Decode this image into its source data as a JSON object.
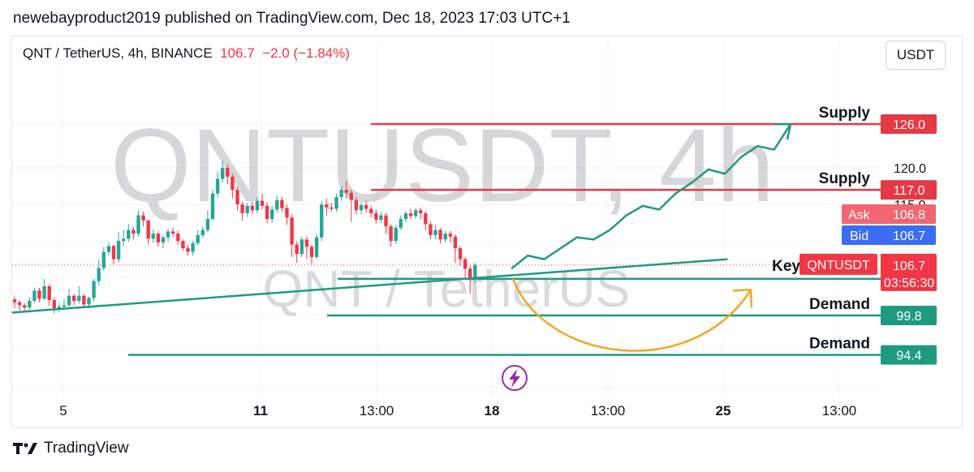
{
  "header": {
    "published_by": "newebayproduct2019 published on TradingView.com, Dec 18, 2023 17:03 UTC+1"
  },
  "symbol": {
    "name": "QNT / TetherUS, 4h, BINANCE",
    "price": "106.7",
    "change": "−2.0 (−1.84%)",
    "currency": "USDT"
  },
  "watermark": {
    "big": "QNTUSDT, 4h",
    "small": "QNT / TetherUS"
  },
  "footer": {
    "brand": "TradingView"
  },
  "colors": {
    "up": "#26a69a",
    "down": "#f23645",
    "supply_line": "#e53945",
    "demand_line": "#1f9a80",
    "arrow": "#1f9a80",
    "curve": "#f5a623",
    "ask": "#f26671",
    "bid": "#3a6cf4"
  },
  "chart_data": {
    "type": "candlestick",
    "x_ticks": [
      "5",
      "11",
      "13:00",
      "18",
      "13:00",
      "25",
      "13:00"
    ],
    "y_ticks": [
      120.0,
      115.0
    ],
    "ylim": [
      88.8,
      133.0
    ],
    "levels": [
      {
        "label": "Supply",
        "value": 126.0,
        "value_label": "126.0",
        "kind": "supply"
      },
      {
        "label": "Supply",
        "value": 117.0,
        "value_label": "117.0",
        "kind": "supply"
      },
      {
        "label": "Key",
        "value": 104.8,
        "value_label": "104.8",
        "kind": "demand"
      },
      {
        "label": "Demand",
        "value": 99.8,
        "value_label": "99.8",
        "kind": "demand"
      },
      {
        "label": "Demand",
        "value": 94.4,
        "value_label": "94.4",
        "kind": "demand"
      }
    ],
    "ask": {
      "label": "Ask",
      "value": "106.8"
    },
    "bid": {
      "label": "Bid",
      "value": "106.7"
    },
    "last": {
      "label": "QNTUSDT",
      "value": "106.7",
      "countdown": "03:56:30"
    },
    "candles": [
      {
        "o": 102.0,
        "c": 101.6,
        "h": 102.4,
        "l": 100.8
      },
      {
        "o": 101.6,
        "c": 101.2,
        "h": 101.9,
        "l": 100.5
      },
      {
        "o": 101.2,
        "c": 100.9,
        "h": 101.5,
        "l": 100.3
      },
      {
        "o": 100.9,
        "c": 101.8,
        "h": 102.3,
        "l": 100.6
      },
      {
        "o": 101.8,
        "c": 103.2,
        "h": 103.6,
        "l": 101.5
      },
      {
        "o": 103.2,
        "c": 102.1,
        "h": 103.6,
        "l": 101.6
      },
      {
        "o": 102.1,
        "c": 103.8,
        "h": 104.8,
        "l": 101.9
      },
      {
        "o": 103.8,
        "c": 101.9,
        "h": 104.1,
        "l": 101.1
      },
      {
        "o": 101.9,
        "c": 100.8,
        "h": 102.3,
        "l": 100.1
      },
      {
        "o": 100.8,
        "c": 101.0,
        "h": 101.5,
        "l": 100.2
      },
      {
        "o": 101.0,
        "c": 101.2,
        "h": 102.0,
        "l": 100.6
      },
      {
        "o": 101.2,
        "c": 102.5,
        "h": 103.4,
        "l": 101.0
      },
      {
        "o": 102.5,
        "c": 101.8,
        "h": 102.7,
        "l": 101.2
      },
      {
        "o": 101.8,
        "c": 102.5,
        "h": 103.8,
        "l": 101.4
      },
      {
        "o": 102.5,
        "c": 101.3,
        "h": 102.6,
        "l": 100.8
      },
      {
        "o": 101.3,
        "c": 102.2,
        "h": 102.4,
        "l": 100.8
      },
      {
        "o": 102.2,
        "c": 104.5,
        "h": 104.8,
        "l": 101.7
      },
      {
        "o": 104.5,
        "c": 106.3,
        "h": 107.5,
        "l": 104.0
      },
      {
        "o": 106.3,
        "c": 108.5,
        "h": 109.2,
        "l": 105.9
      },
      {
        "o": 108.5,
        "c": 109.3,
        "h": 109.8,
        "l": 108.0
      },
      {
        "o": 109.3,
        "c": 107.5,
        "h": 109.5,
        "l": 106.8
      },
      {
        "o": 107.5,
        "c": 110.0,
        "h": 111.2,
        "l": 107.0
      },
      {
        "o": 110.0,
        "c": 110.3,
        "h": 111.5,
        "l": 109.3
      },
      {
        "o": 110.3,
        "c": 111.5,
        "h": 112.3,
        "l": 109.9
      },
      {
        "o": 111.5,
        "c": 111.0,
        "h": 111.9,
        "l": 110.2
      },
      {
        "o": 111.0,
        "c": 113.5,
        "h": 114.2,
        "l": 110.6
      },
      {
        "o": 113.5,
        "c": 112.8,
        "h": 114.0,
        "l": 112.0
      },
      {
        "o": 112.8,
        "c": 110.3,
        "h": 113.0,
        "l": 109.5
      },
      {
        "o": 110.3,
        "c": 111.0,
        "h": 111.6,
        "l": 109.8
      },
      {
        "o": 111.0,
        "c": 109.8,
        "h": 111.3,
        "l": 109.2
      },
      {
        "o": 109.8,
        "c": 110.5,
        "h": 110.8,
        "l": 109.0
      },
      {
        "o": 110.5,
        "c": 111.3,
        "h": 111.6,
        "l": 109.9
      },
      {
        "o": 111.3,
        "c": 111.0,
        "h": 111.8,
        "l": 110.5
      },
      {
        "o": 111.0,
        "c": 110.0,
        "h": 111.4,
        "l": 109.5
      },
      {
        "o": 110.0,
        "c": 109.0,
        "h": 110.2,
        "l": 108.6
      },
      {
        "o": 109.0,
        "c": 108.5,
        "h": 109.5,
        "l": 108.0
      },
      {
        "o": 108.5,
        "c": 109.7,
        "h": 110.0,
        "l": 108.0
      },
      {
        "o": 109.7,
        "c": 110.8,
        "h": 111.5,
        "l": 109.4
      },
      {
        "o": 110.8,
        "c": 111.5,
        "h": 112.0,
        "l": 110.4
      },
      {
        "o": 111.5,
        "c": 113.0,
        "h": 114.2,
        "l": 111.2
      },
      {
        "o": 113.0,
        "c": 116.5,
        "h": 117.0,
        "l": 112.8
      },
      {
        "o": 116.5,
        "c": 118.5,
        "h": 119.5,
        "l": 116.0
      },
      {
        "o": 118.5,
        "c": 120.0,
        "h": 121.0,
        "l": 118.0
      },
      {
        "o": 120.0,
        "c": 118.8,
        "h": 120.5,
        "l": 117.8
      },
      {
        "o": 118.8,
        "c": 117.0,
        "h": 119.2,
        "l": 115.8
      },
      {
        "o": 117.0,
        "c": 115.0,
        "h": 117.4,
        "l": 114.2
      },
      {
        "o": 115.0,
        "c": 113.8,
        "h": 115.4,
        "l": 112.8
      },
      {
        "o": 113.8,
        "c": 114.8,
        "h": 115.2,
        "l": 113.3
      },
      {
        "o": 114.8,
        "c": 114.2,
        "h": 115.4,
        "l": 113.6
      },
      {
        "o": 114.2,
        "c": 115.5,
        "h": 116.0,
        "l": 113.8
      },
      {
        "o": 115.5,
        "c": 114.8,
        "h": 116.5,
        "l": 114.3
      },
      {
        "o": 114.8,
        "c": 113.0,
        "h": 115.3,
        "l": 112.4
      },
      {
        "o": 113.0,
        "c": 114.3,
        "h": 114.8,
        "l": 112.5
      },
      {
        "o": 114.3,
        "c": 115.6,
        "h": 116.2,
        "l": 113.9
      },
      {
        "o": 115.6,
        "c": 114.5,
        "h": 116.0,
        "l": 114.0
      },
      {
        "o": 114.5,
        "c": 113.2,
        "h": 115.0,
        "l": 112.2
      },
      {
        "o": 113.2,
        "c": 109.5,
        "h": 113.6,
        "l": 107.8
      },
      {
        "o": 109.5,
        "c": 108.2,
        "h": 110.0,
        "l": 107.0
      },
      {
        "o": 108.2,
        "c": 110.2,
        "h": 110.6,
        "l": 107.8
      },
      {
        "o": 110.2,
        "c": 109.2,
        "h": 110.6,
        "l": 107.5
      },
      {
        "o": 109.2,
        "c": 107.8,
        "h": 109.5,
        "l": 106.8
      },
      {
        "o": 107.8,
        "c": 110.5,
        "h": 111.0,
        "l": 107.5
      },
      {
        "o": 110.5,
        "c": 115.0,
        "h": 115.5,
        "l": 110.0
      },
      {
        "o": 115.0,
        "c": 114.6,
        "h": 115.8,
        "l": 113.4
      },
      {
        "o": 114.6,
        "c": 114.4,
        "h": 115.2,
        "l": 114.0
      },
      {
        "o": 114.4,
        "c": 116.0,
        "h": 116.5,
        "l": 114.0
      },
      {
        "o": 116.0,
        "c": 117.0,
        "h": 117.5,
        "l": 115.5
      },
      {
        "o": 117.0,
        "c": 116.6,
        "h": 118.2,
        "l": 115.8
      },
      {
        "o": 116.6,
        "c": 115.6,
        "h": 117.0,
        "l": 112.6
      },
      {
        "o": 115.6,
        "c": 114.2,
        "h": 116.0,
        "l": 113.6
      },
      {
        "o": 114.2,
        "c": 114.9,
        "h": 115.3,
        "l": 113.7
      },
      {
        "o": 114.9,
        "c": 114.4,
        "h": 115.5,
        "l": 113.9
      },
      {
        "o": 114.4,
        "c": 113.8,
        "h": 114.8,
        "l": 113.2
      },
      {
        "o": 113.8,
        "c": 112.9,
        "h": 114.3,
        "l": 112.4
      },
      {
        "o": 112.9,
        "c": 113.5,
        "h": 114.0,
        "l": 112.5
      },
      {
        "o": 113.5,
        "c": 112.0,
        "h": 113.8,
        "l": 111.0
      },
      {
        "o": 112.0,
        "c": 110.0,
        "h": 112.3,
        "l": 109.2
      },
      {
        "o": 110.0,
        "c": 111.8,
        "h": 112.2,
        "l": 109.6
      },
      {
        "o": 111.8,
        "c": 113.0,
        "h": 113.5,
        "l": 111.5
      },
      {
        "o": 113.0,
        "c": 113.8,
        "h": 114.1,
        "l": 112.6
      },
      {
        "o": 113.8,
        "c": 113.4,
        "h": 114.4,
        "l": 113.0
      },
      {
        "o": 113.4,
        "c": 114.2,
        "h": 114.5,
        "l": 113.1
      },
      {
        "o": 114.2,
        "c": 113.8,
        "h": 114.6,
        "l": 113.0
      },
      {
        "o": 113.8,
        "c": 112.3,
        "h": 114.0,
        "l": 111.5
      },
      {
        "o": 112.3,
        "c": 110.8,
        "h": 112.7,
        "l": 110.2
      },
      {
        "o": 110.8,
        "c": 111.5,
        "h": 112.2,
        "l": 110.2
      },
      {
        "o": 111.5,
        "c": 110.2,
        "h": 111.8,
        "l": 109.6
      },
      {
        "o": 110.2,
        "c": 111.0,
        "h": 111.4,
        "l": 109.8
      },
      {
        "o": 111.0,
        "c": 110.6,
        "h": 111.4,
        "l": 109.8
      },
      {
        "o": 110.6,
        "c": 109.0,
        "h": 110.9,
        "l": 107.0
      },
      {
        "o": 109.0,
        "c": 107.5,
        "h": 109.3,
        "l": 106.6
      },
      {
        "o": 107.5,
        "c": 106.2,
        "h": 107.8,
        "l": 104.8
      },
      {
        "o": 106.2,
        "c": 104.8,
        "h": 106.6,
        "l": 102.8
      },
      {
        "o": 104.8,
        "c": 106.7,
        "h": 107.0,
        "l": 104.2
      }
    ],
    "trendline": {
      "from": {
        "i": 0,
        "v": 100.2
      },
      "to": {
        "i": 144,
        "v": 107.5
      }
    },
    "forecast_path": [
      106.2,
      108.0,
      107.5,
      109.0,
      110.5,
      110.2,
      111.5,
      113.5,
      114.8,
      114.3,
      116.5,
      118.0,
      119.8,
      119.2,
      121.5,
      123.0,
      122.5,
      126.0
    ],
    "forecast_curve": {
      "start": 104.8,
      "bottom": 96.2,
      "end": 103.3
    }
  }
}
